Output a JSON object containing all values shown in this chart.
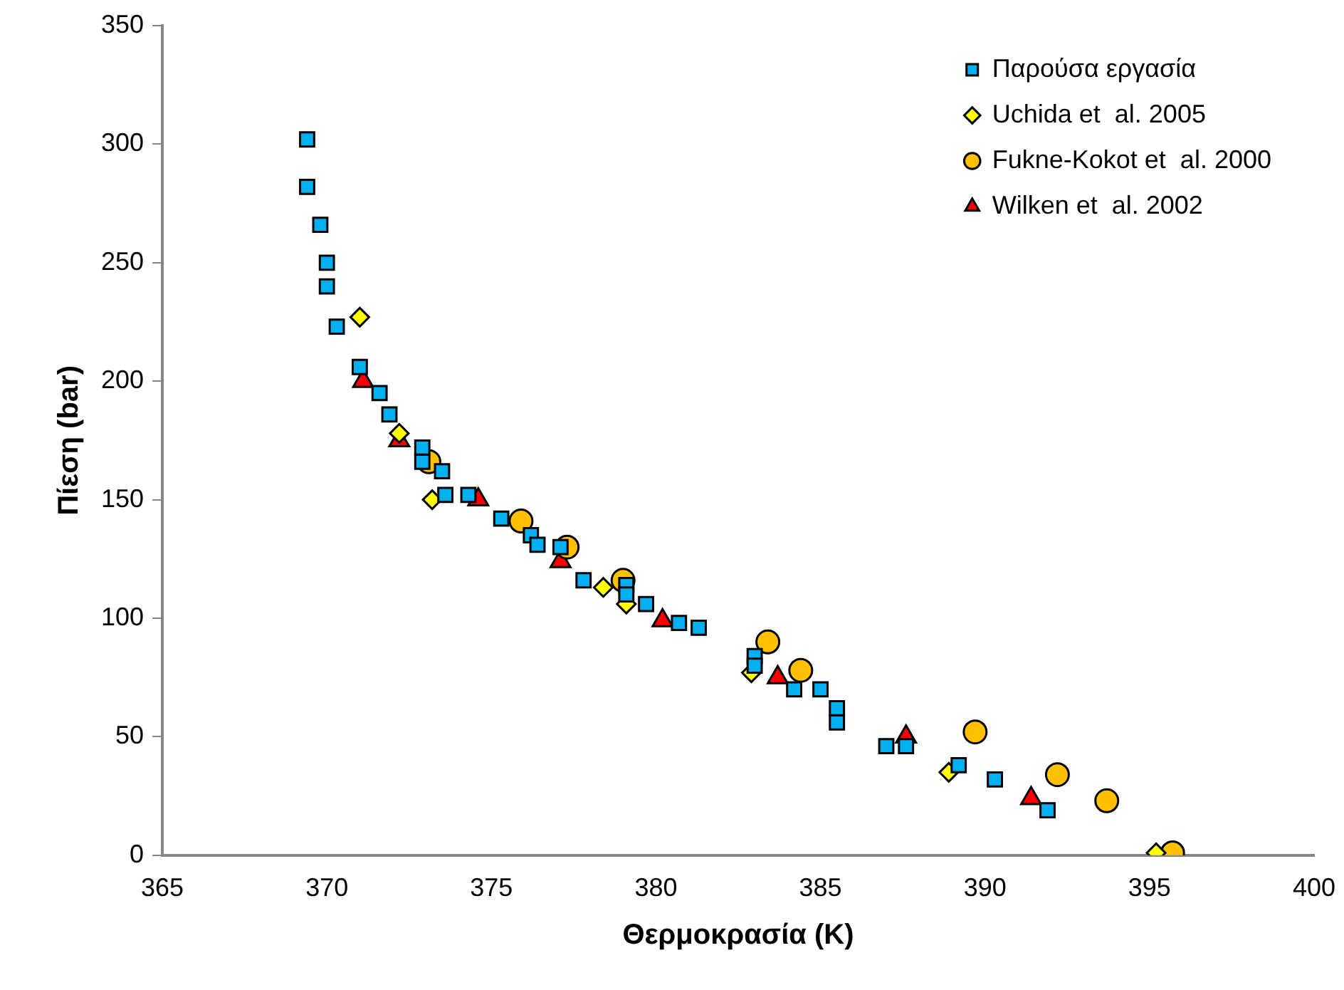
{
  "chart_data": {
    "type": "scatter",
    "xlabel": "Θερμοκρασία (K)",
    "ylabel": "Πίεση (bar)",
    "xlim": [
      365,
      400
    ],
    "xticks": [
      365,
      370,
      375,
      380,
      385,
      390,
      395,
      400
    ],
    "ylim": [
      0,
      350
    ],
    "yticks": [
      0,
      50,
      100,
      150,
      200,
      250,
      300,
      350
    ],
    "grid": false,
    "legend": "top right",
    "series": [
      {
        "name": "Παρούσα εργασία",
        "color": "#00b0f0",
        "marker": "square",
        "x": [
          369.4,
          369.4,
          369.8,
          370,
          370,
          370.3,
          371,
          371.6,
          371.9,
          372.9,
          372.9,
          373.5,
          373.6,
          374.3,
          375.3,
          376.2,
          376.4,
          377.1,
          377.8,
          379.1,
          379.1,
          379.7,
          380.7,
          381.3,
          383,
          383,
          384.2,
          385,
          385.5,
          385.5,
          387,
          387.6,
          389.2,
          390.3,
          391.9
        ],
        "values": [
          302,
          282,
          266,
          250,
          240,
          223,
          206,
          195,
          186,
          172,
          166,
          162,
          152,
          152,
          142,
          135,
          131,
          130,
          116,
          114,
          110,
          106,
          98,
          96,
          84,
          80,
          70,
          70,
          62,
          56,
          46,
          46,
          38,
          32,
          19
        ]
      },
      {
        "name": "Uchida et  al. 2005",
        "color": "#ffff00",
        "marker": "diamond",
        "x": [
          371,
          372.2,
          373.2,
          378.4,
          379.1,
          382.9,
          388.9,
          395.2
        ],
        "values": [
          227,
          178,
          150,
          113,
          106,
          77,
          35,
          1
        ]
      },
      {
        "name": "Fukne-Kokot et  al. 2000",
        "color": "#ffc000",
        "marker": "circle",
        "x": [
          373.1,
          375.9,
          377.3,
          379,
          383.4,
          384.4,
          389.7,
          392.2,
          393.7,
          395.7
        ],
        "values": [
          166,
          141,
          130,
          116,
          90,
          78,
          52,
          34,
          23,
          1
        ]
      },
      {
        "name": "Wilken et  al. 2002",
        "color": "#ff0000",
        "marker": "triangle",
        "x": [
          371.1,
          372.2,
          374.6,
          377.1,
          380.2,
          383.7,
          387.6,
          391.4
        ],
        "values": [
          200,
          175,
          150,
          124,
          99,
          75,
          50,
          24
        ]
      }
    ]
  }
}
